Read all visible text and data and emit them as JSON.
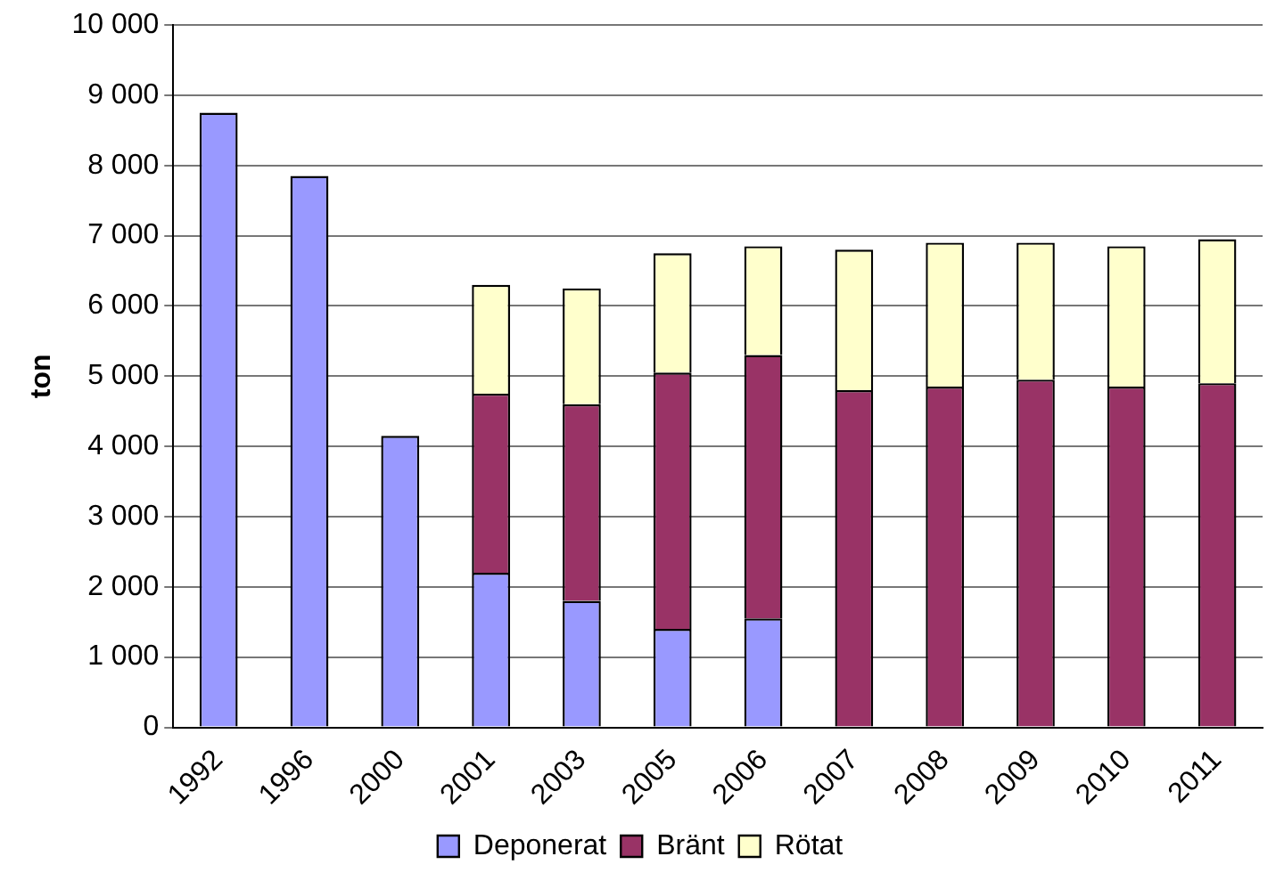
{
  "chart_data": {
    "type": "bar",
    "stacked": true,
    "ylabel": "ton",
    "categories": [
      "1992",
      "1996",
      "2000",
      "2001",
      "2003",
      "2005",
      "2006",
      "2007",
      "2008",
      "2009",
      "2010",
      "2011"
    ],
    "series": [
      {
        "name": "Deponerat",
        "color": "#9999ff",
        "values": [
          8750,
          7850,
          4150,
          2200,
          1800,
          1400,
          1550,
          null,
          null,
          null,
          null,
          null
        ]
      },
      {
        "name": "Bränt",
        "color": "#993366",
        "values": [
          null,
          null,
          null,
          2550,
          2800,
          3650,
          3750,
          4800,
          4850,
          4950,
          4850,
          4900
        ]
      },
      {
        "name": "Rötat",
        "color": "#ffffcc",
        "values": [
          null,
          null,
          null,
          1550,
          1650,
          1700,
          1550,
          2000,
          2050,
          1950,
          2000,
          2050
        ]
      }
    ],
    "ylim": [
      0,
      10000
    ],
    "yticks": [
      {
        "value": 0,
        "label": "0"
      },
      {
        "value": 1000,
        "label": "1 000"
      },
      {
        "value": 2000,
        "label": "2 000"
      },
      {
        "value": 3000,
        "label": "3 000"
      },
      {
        "value": 4000,
        "label": "4 000"
      },
      {
        "value": 5000,
        "label": "5 000"
      },
      {
        "value": 6000,
        "label": "6 000"
      },
      {
        "value": 7000,
        "label": "7 000"
      },
      {
        "value": 8000,
        "label": "8 000"
      },
      {
        "value": 9000,
        "label": "9 000"
      },
      {
        "value": 10000,
        "label": "10 000"
      }
    ],
    "grid": "y",
    "legend": "bottom"
  }
}
